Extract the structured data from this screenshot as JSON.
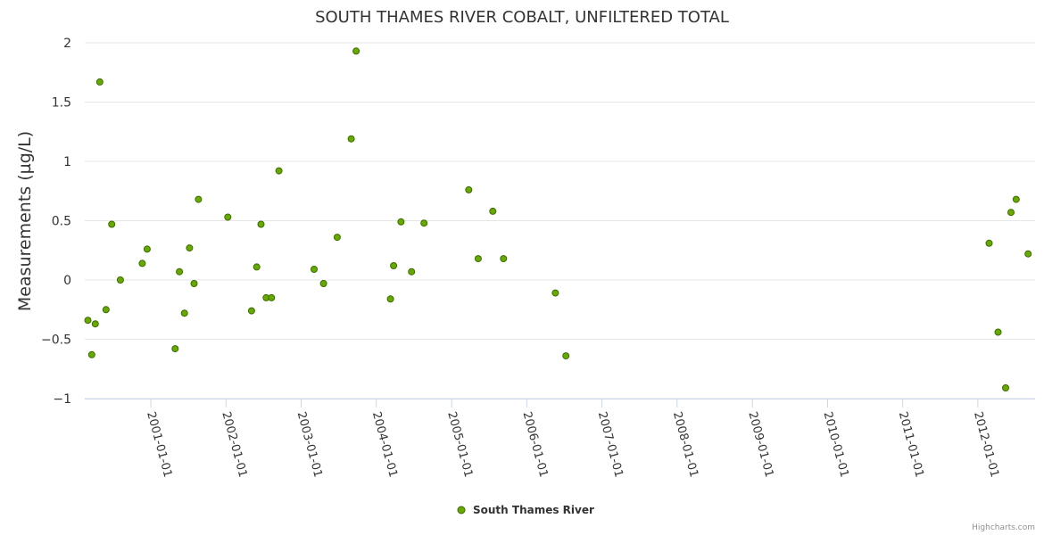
{
  "chart_data": {
    "type": "scatter",
    "title": "SOUTH THAMES RIVER COBALT, UNFILTERED TOTAL",
    "ylabel": "Measurements (µg/L)",
    "xlabel": "",
    "xlim": [
      "2000-02-15",
      "2012-10-05"
    ],
    "ylim": [
      -1,
      2
    ],
    "y_ticks": [
      -1,
      -0.5,
      0,
      0.5,
      1,
      1.5,
      2
    ],
    "y_tick_labels": [
      "−1",
      "−0.5",
      "0",
      "0.5",
      "1",
      "1.5",
      "2"
    ],
    "x_ticks": [
      "2001-01-01",
      "2002-01-01",
      "2003-01-01",
      "2004-01-01",
      "2005-01-01",
      "2006-01-01",
      "2007-01-01",
      "2008-01-01",
      "2009-01-01",
      "2010-01-01",
      "2011-01-01",
      "2012-01-01"
    ],
    "x_tick_labels": [
      "2001-01-01",
      "2002-01-01",
      "2003-01-01",
      "2004-01-01",
      "2005-01-01",
      "2006-01-01",
      "2007-01-01",
      "2008-01-01",
      "2009-01-01",
      "2010-01-01",
      "2011-01-01",
      "2012-01-01"
    ],
    "grid": true,
    "legend_position": "bottom-center",
    "colors": {
      "marker_fill": "#66aa00",
      "marker_stroke": "#3d6b00"
    },
    "series": [
      {
        "name": "South Thames River",
        "points": [
          {
            "x": "2000-03-01",
            "y": -0.34
          },
          {
            "x": "2000-03-20",
            "y": -0.63
          },
          {
            "x": "2000-04-06",
            "y": -0.37
          },
          {
            "x": "2000-04-28",
            "y": 1.67
          },
          {
            "x": "2000-05-28",
            "y": -0.25
          },
          {
            "x": "2000-06-25",
            "y": 0.47
          },
          {
            "x": "2000-08-06",
            "y": 0.0
          },
          {
            "x": "2000-11-20",
            "y": 0.14
          },
          {
            "x": "2000-12-14",
            "y": 0.26
          },
          {
            "x": "2001-04-29",
            "y": -0.58
          },
          {
            "x": "2001-05-20",
            "y": 0.07
          },
          {
            "x": "2001-06-13",
            "y": -0.28
          },
          {
            "x": "2001-07-08",
            "y": 0.27
          },
          {
            "x": "2001-07-30",
            "y": -0.03
          },
          {
            "x": "2001-08-20",
            "y": 0.68
          },
          {
            "x": "2002-01-10",
            "y": 0.53
          },
          {
            "x": "2002-05-05",
            "y": -0.26
          },
          {
            "x": "2002-05-30",
            "y": 0.11
          },
          {
            "x": "2002-06-20",
            "y": 0.47
          },
          {
            "x": "2002-07-15",
            "y": -0.15
          },
          {
            "x": "2002-08-10",
            "y": -0.15
          },
          {
            "x": "2002-09-15",
            "y": 0.92
          },
          {
            "x": "2003-03-05",
            "y": 0.09
          },
          {
            "x": "2003-04-20",
            "y": -0.03
          },
          {
            "x": "2003-06-25",
            "y": 0.36
          },
          {
            "x": "2003-09-01",
            "y": 1.19
          },
          {
            "x": "2003-09-25",
            "y": 1.93
          },
          {
            "x": "2004-03-10",
            "y": -0.16
          },
          {
            "x": "2004-03-25",
            "y": 0.12
          },
          {
            "x": "2004-04-30",
            "y": 0.49
          },
          {
            "x": "2004-06-20",
            "y": 0.07
          },
          {
            "x": "2004-08-20",
            "y": 0.48
          },
          {
            "x": "2005-03-25",
            "y": 0.76
          },
          {
            "x": "2005-05-10",
            "y": 0.18
          },
          {
            "x": "2005-07-20",
            "y": 0.58
          },
          {
            "x": "2005-09-10",
            "y": 0.18
          },
          {
            "x": "2006-05-20",
            "y": -0.11
          },
          {
            "x": "2006-07-10",
            "y": -0.64
          },
          {
            "x": "2012-02-25",
            "y": 0.31
          },
          {
            "x": "2012-04-08",
            "y": -0.44
          },
          {
            "x": "2012-05-15",
            "y": -0.91
          },
          {
            "x": "2012-06-10",
            "y": 0.57
          },
          {
            "x": "2012-07-05",
            "y": 0.68
          },
          {
            "x": "2012-09-01",
            "y": 0.22
          }
        ]
      }
    ]
  },
  "credits": "Highcharts.com"
}
